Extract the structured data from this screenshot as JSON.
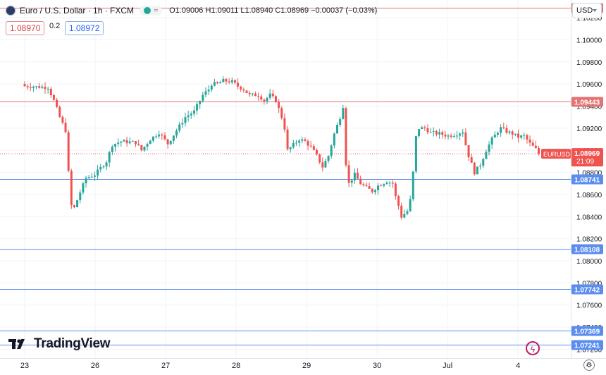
{
  "header": {
    "symbol_title": "Euro / U.S. Dollar · 1h · FXCM",
    "ohlc": "O1.09006 H1.09011 L1.08940 C1.08969 −0.00037 (−0.03%)",
    "sell_price": "1.08970",
    "spread": "0.2",
    "buy_price": "1.08972",
    "currency": "USD",
    "status_dot_color": "#26a69a"
  },
  "branding": {
    "logo_text": "TradingView",
    "logo_icon": "tradingview-logo-icon"
  },
  "colors": {
    "up": "#26a69a",
    "down": "#ef5350",
    "grid": "#f0f3fa",
    "resistance": "#e57373",
    "support": "#5b8def"
  },
  "chart_data": {
    "type": "candlestick",
    "symbol": "EURUSD",
    "interval": "1h",
    "ylim": [
      1.0712,
      1.1036
    ],
    "y_ticks": [
      "1.10200",
      "1.10000",
      "1.09800",
      "1.09600",
      "1.09400",
      "1.09200",
      "1.09000",
      "1.08800",
      "1.08600",
      "1.08400",
      "1.08200",
      "1.08000",
      "1.07800",
      "1.07600",
      "1.07400",
      "1.07200"
    ],
    "x_ticks": [
      {
        "label": "23",
        "index": 0
      },
      {
        "label": "26",
        "index": 24.13
      },
      {
        "label": "27",
        "index": 48.27
      },
      {
        "label": "28",
        "index": 72.4
      },
      {
        "label": "29",
        "index": 96.53
      },
      {
        "label": "30",
        "index": 120.67
      },
      {
        "label": "Jul",
        "index": 144.8
      },
      {
        "label": "4",
        "index": 168.93
      }
    ],
    "horizontal_lines": [
      {
        "label": "1.10289",
        "value": 1.10289,
        "color": "#e57373"
      },
      {
        "label": "1.09443",
        "value": 1.09443,
        "color": "#e57373"
      },
      {
        "label": "1.08741",
        "value": 1.08741,
        "color": "#5b8def"
      },
      {
        "label": "1.08108",
        "value": 1.08108,
        "color": "#5b8def"
      },
      {
        "label": "1.07742",
        "value": 1.07742,
        "color": "#5b8def"
      },
      {
        "label": "1.07369",
        "value": 1.07369,
        "color": "#5b8def"
      },
      {
        "label": "1.07241",
        "value": 1.07241,
        "color": "#5b8def"
      }
    ],
    "current_price": {
      "symbol": "EURUSD",
      "value": "1.08969",
      "countdown": "21:09"
    },
    "close_path": [
      [
        0,
        1.0958
      ],
      [
        8,
        1.0957
      ],
      [
        10,
        1.0945
      ],
      [
        12,
        1.093
      ],
      [
        14,
        1.0918
      ],
      [
        15,
        1.088
      ],
      [
        16,
        1.085
      ],
      [
        17,
        1.0848
      ],
      [
        19,
        1.0862
      ],
      [
        21,
        1.0875
      ],
      [
        24,
        1.0878
      ],
      [
        26,
        1.0884
      ],
      [
        28,
        1.089
      ],
      [
        30,
        1.0905
      ],
      [
        33,
        1.0908
      ],
      [
        38,
        1.0907
      ],
      [
        40,
        1.09
      ],
      [
        43,
        1.091
      ],
      [
        46,
        1.0916
      ],
      [
        49,
        1.0906
      ],
      [
        52,
        1.0918
      ],
      [
        55,
        1.093
      ],
      [
        58,
        1.0935
      ],
      [
        61,
        1.095
      ],
      [
        63,
        1.0955
      ],
      [
        64,
        1.096
      ],
      [
        66,
        1.096
      ],
      [
        68,
        1.0963
      ],
      [
        71,
        1.0962
      ],
      [
        73,
        1.0958
      ],
      [
        75,
        1.0955
      ],
      [
        77,
        1.095
      ],
      [
        80,
        1.095
      ],
      [
        82,
        1.0945
      ],
      [
        84,
        1.095
      ],
      [
        86,
        1.0945
      ],
      [
        88,
        1.093
      ],
      [
        89,
        1.092
      ],
      [
        90,
        1.09
      ],
      [
        92,
        1.0905
      ],
      [
        94,
        1.091
      ],
      [
        96,
        1.0908
      ],
      [
        98,
        1.0903
      ],
      [
        100,
        1.0895
      ],
      [
        102,
        1.0885
      ],
      [
        104,
        1.0895
      ],
      [
        106,
        1.0915
      ],
      [
        108,
        1.093
      ],
      [
        109,
        1.094
      ],
      [
        110,
        1.0888
      ],
      [
        111,
        1.087
      ],
      [
        113,
        1.0878
      ],
      [
        115,
        1.087
      ],
      [
        117,
        1.0866
      ],
      [
        119,
        1.0863
      ],
      [
        121,
        1.0868
      ],
      [
        124,
        1.0872
      ],
      [
        126,
        1.087
      ],
      [
        127,
        1.0858
      ],
      [
        128,
        1.085
      ],
      [
        129,
        1.084
      ],
      [
        131,
        1.0845
      ],
      [
        132,
        1.0855
      ],
      [
        133,
        1.088
      ],
      [
        134,
        1.0912
      ],
      [
        135,
        1.092
      ],
      [
        137,
        1.092
      ],
      [
        139,
        1.0916
      ],
      [
        142,
        1.0915
      ],
      [
        145,
        1.0913
      ],
      [
        148,
        1.0915
      ],
      [
        150,
        1.0917
      ],
      [
        151,
        1.0905
      ],
      [
        152,
        1.0895
      ],
      [
        154,
        1.088
      ],
      [
        156,
        1.0887
      ],
      [
        158,
        1.09
      ],
      [
        160,
        1.091
      ],
      [
        162,
        1.0917
      ],
      [
        163,
        1.092
      ],
      [
        165,
        1.0917
      ],
      [
        167,
        1.0915
      ],
      [
        169,
        1.0912
      ],
      [
        171,
        1.0913
      ],
      [
        173,
        1.0906
      ],
      [
        175,
        1.0901
      ],
      [
        176,
        1.0897
      ]
    ]
  }
}
